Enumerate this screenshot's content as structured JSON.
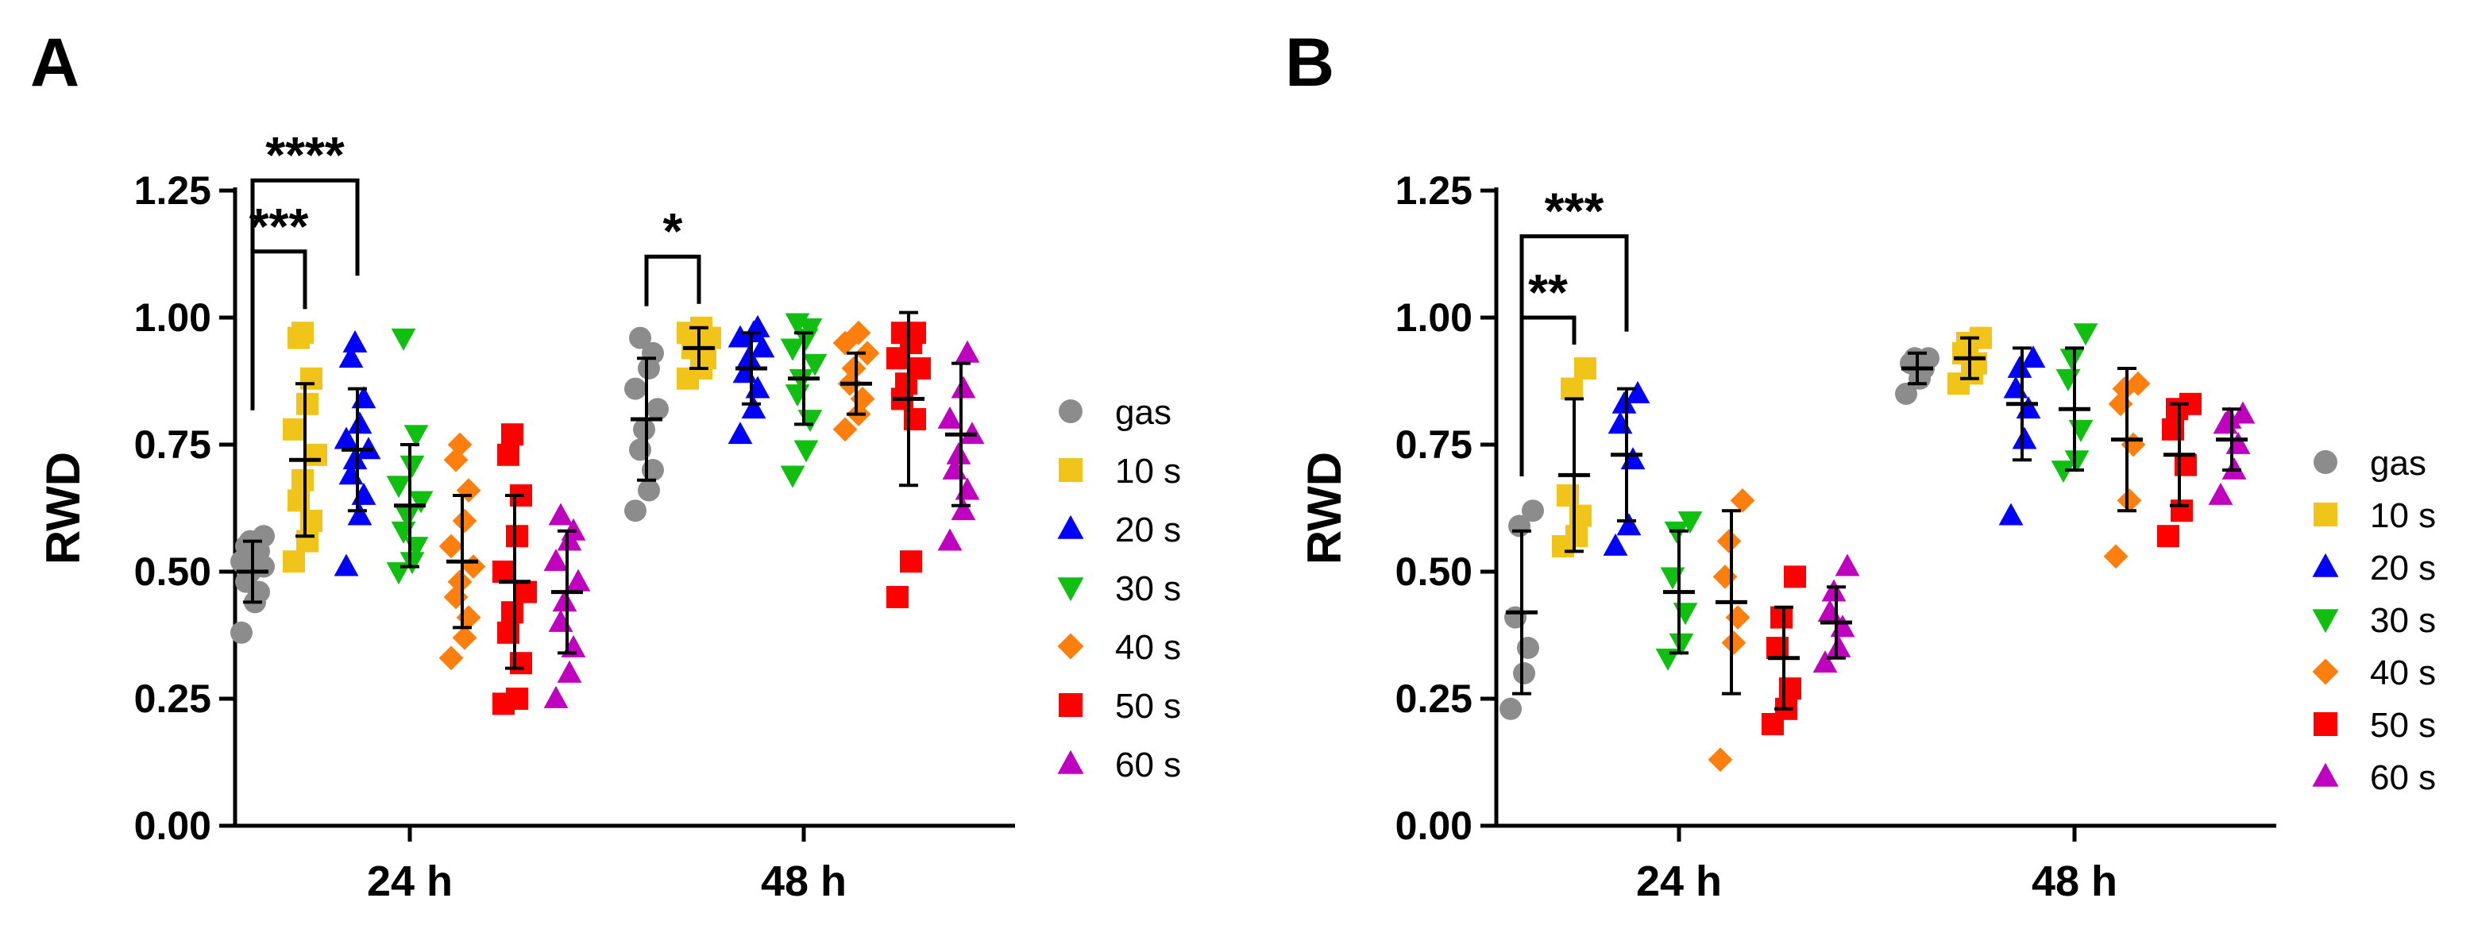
{
  "colors": {
    "gas": "#8c8c8c",
    "10 s": "#f0c419",
    "20 s": "#0000ff",
    "30 s": "#11bf11",
    "40 s": "#ff7f0e",
    "50 s": "#ff0000",
    "60 s": "#bf00bf"
  },
  "chart_data": [
    {
      "panel_label": "A",
      "type": "scatter",
      "ylabel": "RWD",
      "ylim": [
        0,
        1.25
      ],
      "yticks": [
        "0.00",
        "0.25",
        "0.50",
        "0.75",
        "1.00",
        "1.25"
      ],
      "groups": [
        "24 h",
        "48 h"
      ],
      "legend": {
        "position": "right",
        "entries": [
          {
            "label": "gas",
            "marker": "circle"
          },
          {
            "label": "10 s",
            "marker": "square"
          },
          {
            "label": "20 s",
            "marker": "triangle-up"
          },
          {
            "label": "30 s",
            "marker": "triangle-down"
          },
          {
            "label": "40 s",
            "marker": "diamond"
          },
          {
            "label": "50 s",
            "marker": "square"
          },
          {
            "label": "60 s",
            "marker": "triangle-up"
          }
        ]
      },
      "series": [
        {
          "group": "24 h",
          "treatment": "gas",
          "mean": 0.5,
          "sd": 0.06,
          "values": [
            0.38,
            0.44,
            0.46,
            0.48,
            0.5,
            0.51,
            0.52,
            0.53,
            0.54,
            0.55,
            0.56,
            0.57
          ]
        },
        {
          "group": "24 h",
          "treatment": "10 s",
          "mean": 0.72,
          "sd": 0.15,
          "values": [
            0.52,
            0.56,
            0.6,
            0.64,
            0.68,
            0.73,
            0.78,
            0.83,
            0.88,
            0.96,
            0.97
          ]
        },
        {
          "group": "24 h",
          "treatment": "20 s",
          "mean": 0.74,
          "sd": 0.12,
          "values": [
            0.51,
            0.61,
            0.65,
            0.69,
            0.72,
            0.74,
            0.76,
            0.79,
            0.84,
            0.92,
            0.95
          ]
        },
        {
          "group": "24 h",
          "treatment": "30 s",
          "mean": 0.63,
          "sd": 0.12,
          "values": [
            0.5,
            0.52,
            0.55,
            0.58,
            0.61,
            0.64,
            0.67,
            0.71,
            0.77,
            0.96
          ]
        },
        {
          "group": "24 h",
          "treatment": "40 s",
          "mean": 0.52,
          "sd": 0.13,
          "values": [
            0.33,
            0.37,
            0.41,
            0.45,
            0.48,
            0.51,
            0.55,
            0.6,
            0.66,
            0.72,
            0.75
          ]
        },
        {
          "group": "24 h",
          "treatment": "50 s",
          "mean": 0.48,
          "sd": 0.17,
          "values": [
            0.24,
            0.25,
            0.32,
            0.38,
            0.42,
            0.46,
            0.5,
            0.57,
            0.65,
            0.73,
            0.77
          ]
        },
        {
          "group": "24 h",
          "treatment": "60 s",
          "mean": 0.46,
          "sd": 0.12,
          "values": [
            0.25,
            0.3,
            0.35,
            0.4,
            0.44,
            0.48,
            0.52,
            0.56,
            0.58,
            0.61
          ]
        },
        {
          "group": "48 h",
          "treatment": "gas",
          "mean": 0.8,
          "sd": 0.12,
          "values": [
            0.62,
            0.66,
            0.7,
            0.74,
            0.78,
            0.82,
            0.86,
            0.9,
            0.93,
            0.96
          ]
        },
        {
          "group": "48 h",
          "treatment": "10 s",
          "mean": 0.94,
          "sd": 0.04,
          "values": [
            0.88,
            0.9,
            0.92,
            0.94,
            0.95,
            0.96,
            0.97,
            0.98
          ]
        },
        {
          "group": "48 h",
          "treatment": "20 s",
          "mean": 0.9,
          "sd": 0.07,
          "values": [
            0.77,
            0.82,
            0.86,
            0.89,
            0.92,
            0.94,
            0.96,
            0.97,
            0.98
          ]
        },
        {
          "group": "48 h",
          "treatment": "30 s",
          "mean": 0.88,
          "sd": 0.09,
          "values": [
            0.69,
            0.74,
            0.8,
            0.85,
            0.88,
            0.91,
            0.94,
            0.96,
            0.98,
            0.99
          ]
        },
        {
          "group": "48 h",
          "treatment": "40 s",
          "mean": 0.87,
          "sd": 0.06,
          "values": [
            0.78,
            0.81,
            0.84,
            0.87,
            0.9,
            0.93,
            0.95,
            0.97
          ]
        },
        {
          "group": "48 h",
          "treatment": "50 s",
          "mean": 0.84,
          "sd": 0.17,
          "values": [
            0.45,
            0.52,
            0.8,
            0.84,
            0.87,
            0.9,
            0.92,
            0.95,
            0.97,
            0.97
          ]
        },
        {
          "group": "48 h",
          "treatment": "60 s",
          "mean": 0.77,
          "sd": 0.14,
          "values": [
            0.56,
            0.62,
            0.66,
            0.7,
            0.73,
            0.77,
            0.8,
            0.86,
            0.93
          ]
        }
      ],
      "significance": [
        {
          "from": "gas",
          "to": "10 s",
          "group": "24 h",
          "stars": "***",
          "y": 1.13
        },
        {
          "from": "gas",
          "to": "20 s",
          "group": "24 h",
          "stars": "****",
          "y": 1.27
        },
        {
          "from": "gas",
          "to": "10 s",
          "group": "48 h",
          "stars": "*",
          "y": 1.12
        }
      ]
    },
    {
      "panel_label": "B",
      "type": "scatter",
      "ylabel": "RWD",
      "ylim": [
        0,
        1.25
      ],
      "yticks": [
        "0.00",
        "0.25",
        "0.50",
        "0.75",
        "1.00",
        "1.25"
      ],
      "groups": [
        "24 h",
        "48 h"
      ],
      "legend": {
        "position": "right",
        "entries": [
          {
            "label": "gas",
            "marker": "circle"
          },
          {
            "label": "10 s",
            "marker": "square"
          },
          {
            "label": "20 s",
            "marker": "triangle-up"
          },
          {
            "label": "30 s",
            "marker": "triangle-down"
          },
          {
            "label": "40 s",
            "marker": "diamond"
          },
          {
            "label": "50 s",
            "marker": "square"
          },
          {
            "label": "60 s",
            "marker": "triangle-up"
          }
        ]
      },
      "series": [
        {
          "group": "24 h",
          "treatment": "gas",
          "mean": 0.42,
          "sd": 0.16,
          "values": [
            0.23,
            0.3,
            0.35,
            0.41,
            0.59,
            0.62
          ]
        },
        {
          "group": "24 h",
          "treatment": "10 s",
          "mean": 0.69,
          "sd": 0.15,
          "values": [
            0.55,
            0.57,
            0.61,
            0.65,
            0.86,
            0.9
          ]
        },
        {
          "group": "24 h",
          "treatment": "20 s",
          "mean": 0.73,
          "sd": 0.13,
          "values": [
            0.55,
            0.59,
            0.72,
            0.79,
            0.83,
            0.85
          ]
        },
        {
          "group": "24 h",
          "treatment": "30 s",
          "mean": 0.46,
          "sd": 0.12,
          "values": [
            0.33,
            0.36,
            0.42,
            0.49,
            0.58,
            0.6
          ]
        },
        {
          "group": "24 h",
          "treatment": "40 s",
          "mean": 0.44,
          "sd": 0.18,
          "values": [
            0.13,
            0.36,
            0.41,
            0.49,
            0.56,
            0.64
          ]
        },
        {
          "group": "24 h",
          "treatment": "50 s",
          "mean": 0.33,
          "sd": 0.1,
          "values": [
            0.2,
            0.23,
            0.27,
            0.35,
            0.41,
            0.49
          ]
        },
        {
          "group": "24 h",
          "treatment": "60 s",
          "mean": 0.4,
          "sd": 0.07,
          "values": [
            0.32,
            0.35,
            0.39,
            0.42,
            0.46,
            0.51
          ]
        },
        {
          "group": "48 h",
          "treatment": "gas",
          "mean": 0.9,
          "sd": 0.03,
          "values": [
            0.85,
            0.88,
            0.9,
            0.91,
            0.92,
            0.92
          ]
        },
        {
          "group": "48 h",
          "treatment": "10 s",
          "mean": 0.92,
          "sd": 0.04,
          "values": [
            0.87,
            0.89,
            0.91,
            0.93,
            0.95,
            0.96
          ]
        },
        {
          "group": "48 h",
          "treatment": "20 s",
          "mean": 0.83,
          "sd": 0.11,
          "values": [
            0.61,
            0.76,
            0.82,
            0.86,
            0.9,
            0.92
          ]
        },
        {
          "group": "48 h",
          "treatment": "30 s",
          "mean": 0.82,
          "sd": 0.12,
          "values": [
            0.7,
            0.72,
            0.78,
            0.88,
            0.92,
            0.97
          ]
        },
        {
          "group": "48 h",
          "treatment": "40 s",
          "mean": 0.76,
          "sd": 0.14,
          "values": [
            0.53,
            0.64,
            0.75,
            0.83,
            0.86,
            0.87
          ]
        },
        {
          "group": "48 h",
          "treatment": "50 s",
          "mean": 0.73,
          "sd": 0.1,
          "values": [
            0.57,
            0.62,
            0.71,
            0.78,
            0.82,
            0.83
          ]
        },
        {
          "group": "48 h",
          "treatment": "60 s",
          "mean": 0.76,
          "sd": 0.06,
          "values": [
            0.65,
            0.7,
            0.75,
            0.79,
            0.8,
            0.81
          ]
        }
      ],
      "significance": [
        {
          "from": "gas",
          "to": "10 s",
          "group": "24 h",
          "stars": "**",
          "y": 1.0
        },
        {
          "from": "gas",
          "to": "20 s",
          "group": "24 h",
          "stars": "***",
          "y": 1.16
        }
      ]
    }
  ]
}
